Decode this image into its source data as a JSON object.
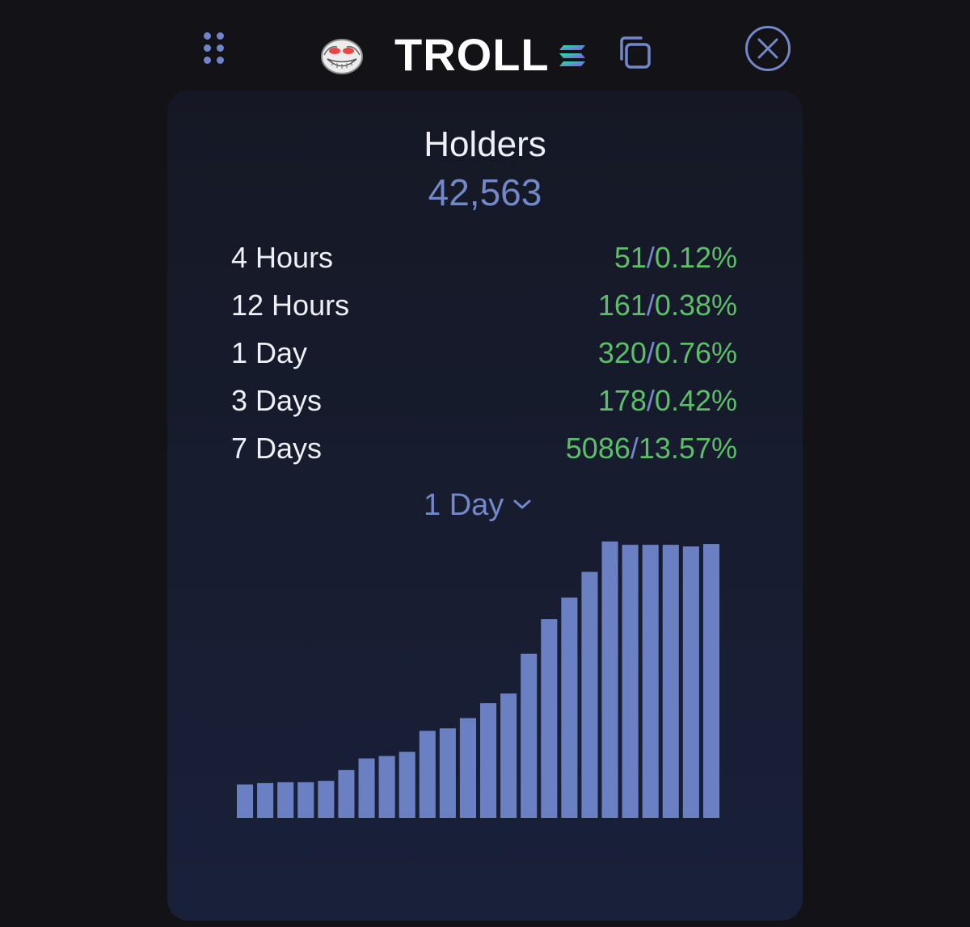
{
  "header": {
    "token_name": "TROLL",
    "token_icon": "troll-face-icon",
    "chain_icon": "solana-icon",
    "copy_icon": "copy-icon",
    "close_icon": "close-icon",
    "drag_icon": "drag-handle-icon"
  },
  "holders": {
    "title": "Holders",
    "count": "42,563"
  },
  "stats": [
    {
      "label": "4 Hours",
      "count": "51",
      "percent": "0.12%"
    },
    {
      "label": "12 Hours",
      "count": "161",
      "percent": "0.38%"
    },
    {
      "label": "1 Day",
      "count": "320",
      "percent": "0.76%"
    },
    {
      "label": "3 Days",
      "count": "178",
      "percent": "0.42%"
    },
    {
      "label": "7 Days",
      "count": "5086",
      "percent": "13.57%"
    }
  ],
  "period_select": {
    "value": "1 Day"
  },
  "colors": {
    "background": "#131217",
    "panel": "#171c2e",
    "accent": "#7388c9",
    "positive": "#5cbf67",
    "bar": "#6a80c3",
    "text": "#eef0f6"
  },
  "chart_data": {
    "type": "bar",
    "ylim": [
      0,
      100
    ],
    "grid": false,
    "values": [
      12.1,
      12.6,
      12.9,
      12.9,
      13.4,
      17.3,
      21.5,
      22.4,
      23.9,
      31.5,
      32.4,
      36.1,
      41.5,
      45.0,
      59.4,
      71.9,
      79.7,
      89.0,
      100,
      98.8,
      98.8,
      98.8,
      98.2,
      99.1
    ]
  }
}
